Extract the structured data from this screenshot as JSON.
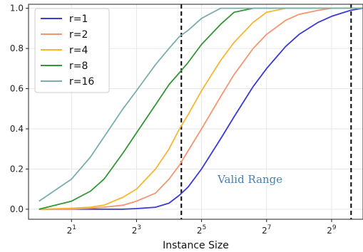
{
  "chart_data": {
    "type": "line",
    "xlabel": "Instance Size",
    "ylabel": "",
    "x_scale": "log2",
    "xlim": [
      0.8,
      1000
    ],
    "ylim": [
      -0.05,
      1.02
    ],
    "grid": true,
    "legend_placement": "top-left",
    "x_ticks": [
      {
        "base": "2",
        "exp": "1",
        "value": 2
      },
      {
        "base": "2",
        "exp": "3",
        "value": 8
      },
      {
        "base": "2",
        "exp": "5",
        "value": 32
      },
      {
        "base": "2",
        "exp": "7",
        "value": 128
      },
      {
        "base": "2",
        "exp": "9",
        "value": 512
      }
    ],
    "y_ticks": [
      "0.0",
      "0.2",
      "0.4",
      "0.6",
      "0.8",
      "1.0"
    ],
    "y_tick_values": [
      0,
      0.2,
      0.4,
      0.6,
      0.8,
      1.0
    ],
    "vlines": [
      20.8,
      776
    ],
    "annotation": {
      "text": "Valid Range",
      "color": "#4a80b0",
      "x": 90,
      "y": 0.13
    },
    "series": [
      {
        "name": "r=1",
        "color": "#3a3ad8",
        "x": [
          1,
          2,
          3,
          4,
          6,
          8,
          12,
          16,
          20,
          24,
          32,
          48,
          64,
          96,
          128,
          192,
          256,
          384,
          512,
          768,
          1000
        ],
        "y": [
          0.0,
          0.0,
          0.0,
          0.0,
          0.0,
          0.003,
          0.01,
          0.03,
          0.07,
          0.11,
          0.2,
          0.35,
          0.46,
          0.61,
          0.7,
          0.81,
          0.87,
          0.93,
          0.96,
          0.99,
          1.0
        ]
      },
      {
        "name": "r=2",
        "color": "#f5956f",
        "x": [
          1,
          2,
          3,
          4,
          6,
          8,
          12,
          16,
          20,
          24,
          32,
          48,
          64,
          96,
          128,
          192,
          256,
          384,
          512,
          768,
          1000
        ],
        "y": [
          0.0,
          0.0,
          0.005,
          0.01,
          0.02,
          0.04,
          0.08,
          0.15,
          0.22,
          0.29,
          0.4,
          0.56,
          0.67,
          0.8,
          0.87,
          0.94,
          0.97,
          0.99,
          1.0,
          1.0,
          1.0
        ]
      },
      {
        "name": "r=4",
        "color": "#f5b731",
        "x": [
          1,
          2,
          3,
          4,
          6,
          8,
          12,
          16,
          20,
          24,
          32,
          48,
          64,
          96,
          128,
          192,
          256,
          384,
          512,
          768,
          1000
        ],
        "y": [
          0.0,
          0.005,
          0.01,
          0.02,
          0.06,
          0.1,
          0.2,
          0.3,
          0.4,
          0.47,
          0.59,
          0.74,
          0.83,
          0.93,
          0.98,
          1.0,
          1.0,
          1.0,
          1.0,
          1.0,
          1.0
        ]
      },
      {
        "name": "r=8",
        "color": "#349634",
        "x": [
          1,
          2,
          3,
          4,
          6,
          8,
          12,
          16,
          20,
          24,
          32,
          48,
          64,
          96,
          128,
          192,
          256,
          384,
          512,
          768,
          1000
        ],
        "y": [
          0.0,
          0.04,
          0.09,
          0.15,
          0.28,
          0.38,
          0.52,
          0.62,
          0.68,
          0.73,
          0.82,
          0.92,
          0.98,
          1.0,
          1.0,
          1.0,
          1.0,
          1.0,
          1.0,
          1.0,
          1.0
        ]
      },
      {
        "name": "r=16",
        "color": "#7aadae",
        "x": [
          1,
          2,
          3,
          4,
          6,
          8,
          12,
          16,
          20,
          24,
          32,
          48,
          64,
          96,
          128,
          192,
          256,
          384,
          512,
          768,
          1000
        ],
        "y": [
          0.04,
          0.15,
          0.26,
          0.36,
          0.5,
          0.59,
          0.72,
          0.8,
          0.86,
          0.89,
          0.95,
          1.0,
          1.0,
          1.0,
          1.0,
          1.0,
          1.0,
          1.0,
          1.0,
          1.0,
          1.0
        ]
      }
    ]
  }
}
